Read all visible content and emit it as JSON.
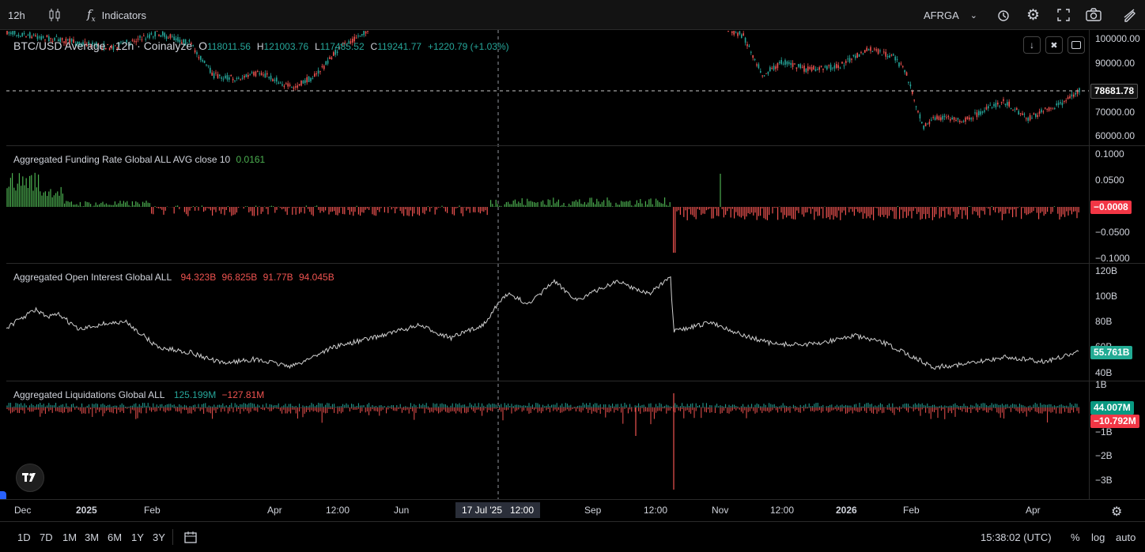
{
  "toolbar": {
    "interval": "12h",
    "indicators_label": "Indicators",
    "symbol_code": "AFRGA"
  },
  "main_pane": {
    "legend_title": "BTC/USD Average · 12h · Coinalyze",
    "open_label": "O",
    "open": "118011.56",
    "high_label": "H",
    "high": "121003.76",
    "low_label": "L",
    "low": "117485.52",
    "close_label": "C",
    "close": "119241.77",
    "change": "+1220.79 (+1.03%)",
    "price_tag": "78681.78",
    "y_ticks": [
      "100000.00",
      "90000.00",
      "70000.00",
      "60000.00"
    ]
  },
  "funding_pane": {
    "legend_title": "Aggregated Funding Rate Global ALL AVG close 10",
    "value": "0.0161",
    "tag": "−0.0008",
    "y_ticks": [
      "0.1000",
      "0.0500",
      "−0.0500",
      "−0.1000"
    ]
  },
  "oi_pane": {
    "legend_title": "Aggregated Open Interest Global ALL",
    "values": [
      "94.323B",
      "96.825B",
      "91.77B",
      "94.045B"
    ],
    "tag": "55.761B",
    "y_ticks": [
      "120B",
      "100B",
      "80B",
      "60B",
      "40B"
    ]
  },
  "liq_pane": {
    "legend_title": "Aggregated Liquidations Global ALL",
    "long_value": "125.199M",
    "short_value": "−127.81M",
    "tag_long": "44.007M",
    "tag_short": "−10.792M",
    "y_ticks": [
      "1B",
      "−1B",
      "−2B",
      "−3B"
    ]
  },
  "x_axis": {
    "labels": [
      "Dec",
      "2025",
      "Feb",
      "Apr",
      "12:00",
      "Jun",
      "Sep",
      "12:00",
      "Nov",
      "12:00",
      "2026",
      "Feb",
      "Apr"
    ],
    "crosshair_label": "17 Jul '25   12:00"
  },
  "bottom_bar": {
    "ranges": [
      "1D",
      "7D",
      "1M",
      "3M",
      "6M",
      "1Y",
      "3Y"
    ],
    "clock": "15:38:02 (UTC)",
    "percent": "%",
    "log": "log",
    "auto": "auto"
  },
  "colors": {
    "up": "#26a69a",
    "down": "#ef5350",
    "funding_pos": "#4caf50",
    "funding_neg": "#ef5350",
    "tag_red": "#f23645",
    "tag_green": "#089981",
    "tag_teal": "#22ab94"
  }
}
